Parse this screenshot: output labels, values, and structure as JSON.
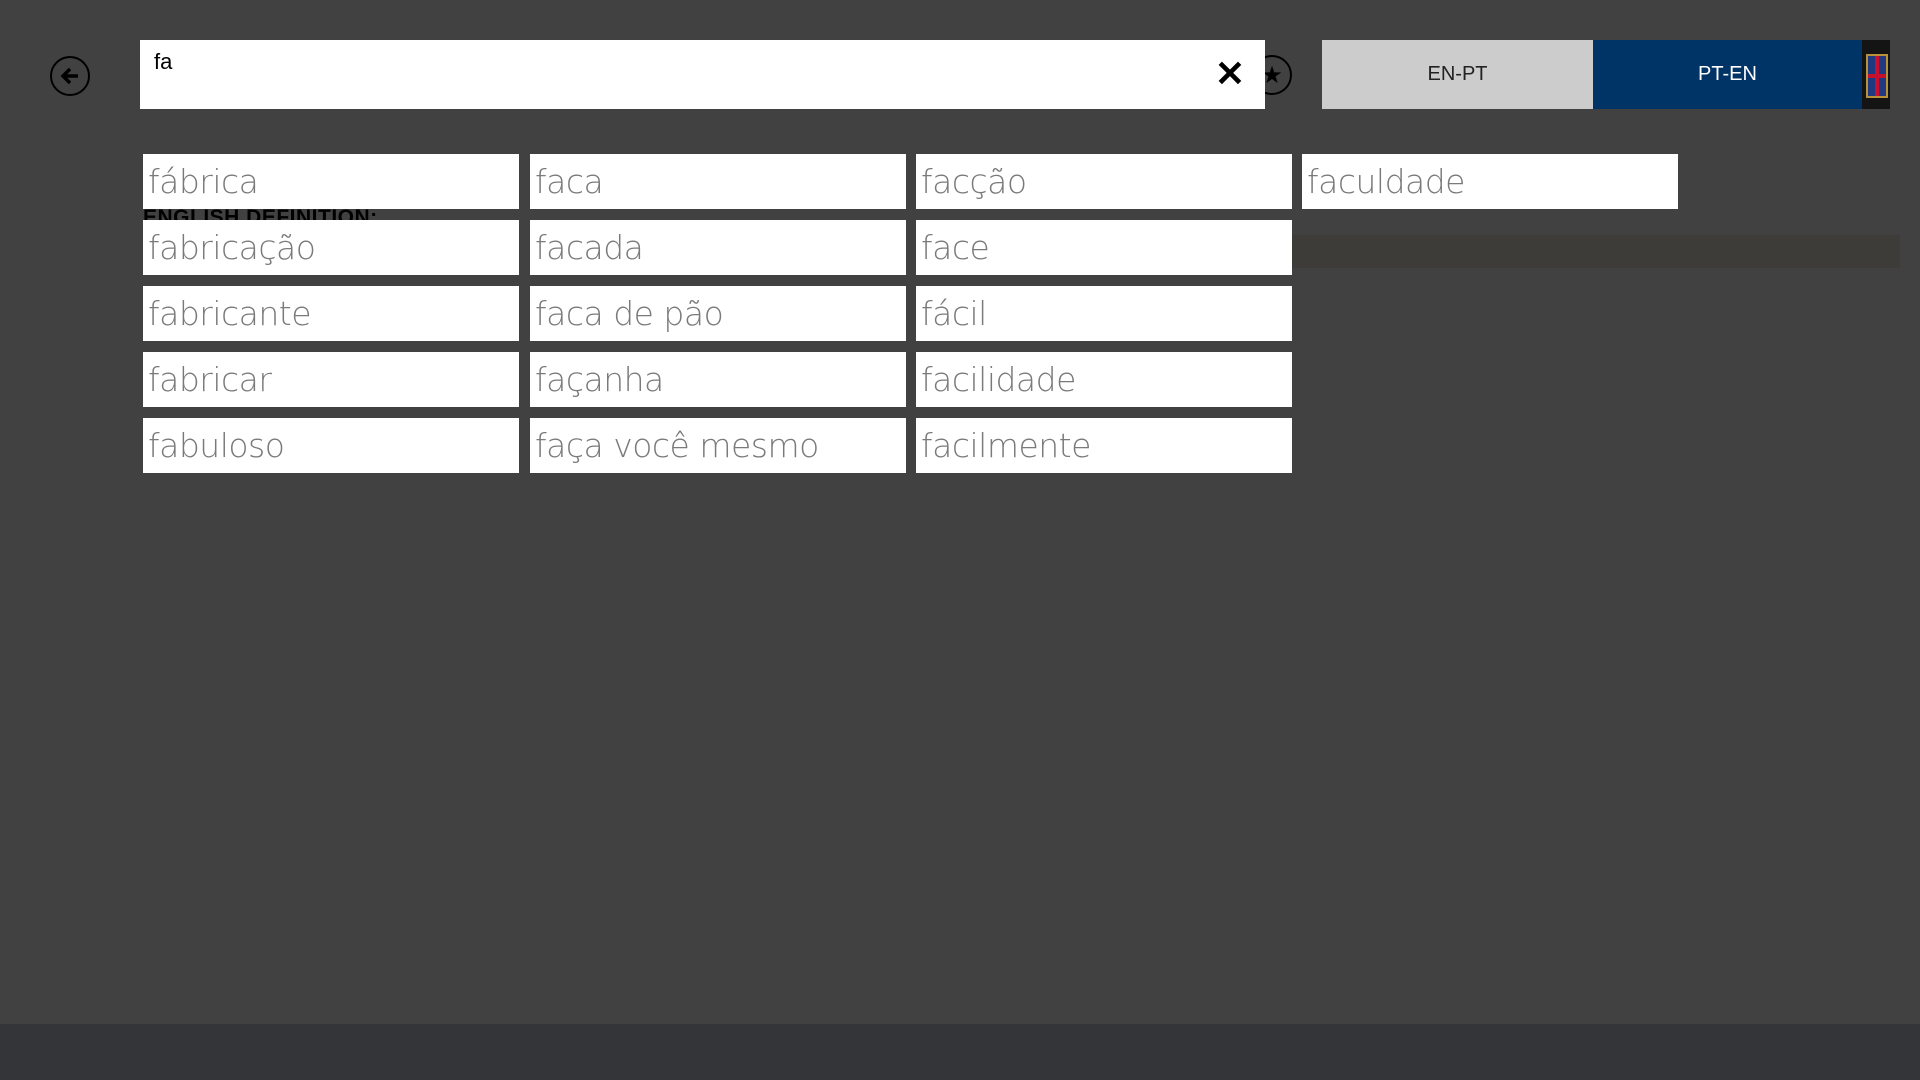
{
  "search": {
    "value": "fa",
    "clear_icon": "close-icon"
  },
  "icons": {
    "back": "arrow-left-circle-icon",
    "favorite": "star-circle-icon",
    "flag": "uk-flag-icon"
  },
  "language_toggle": {
    "options": [
      {
        "label": "EN-PT",
        "selected": false
      },
      {
        "label": "PT-EN",
        "selected": true
      }
    ],
    "selected_color": "#003366",
    "unselected_color": "#cccccc"
  },
  "definition_label": "ENGLISH DEFINITION:",
  "suggestions": {
    "columns": [
      [
        "fábrica",
        "fabricação",
        "fabricante",
        "fabricar",
        "fabuloso"
      ],
      [
        "faca",
        "facada",
        "faca de pão",
        "façanha",
        "faça você mesmo"
      ],
      [
        "facção",
        "face",
        "fácil",
        "facilidade",
        "facilmente"
      ],
      [
        "faculdade"
      ]
    ]
  }
}
